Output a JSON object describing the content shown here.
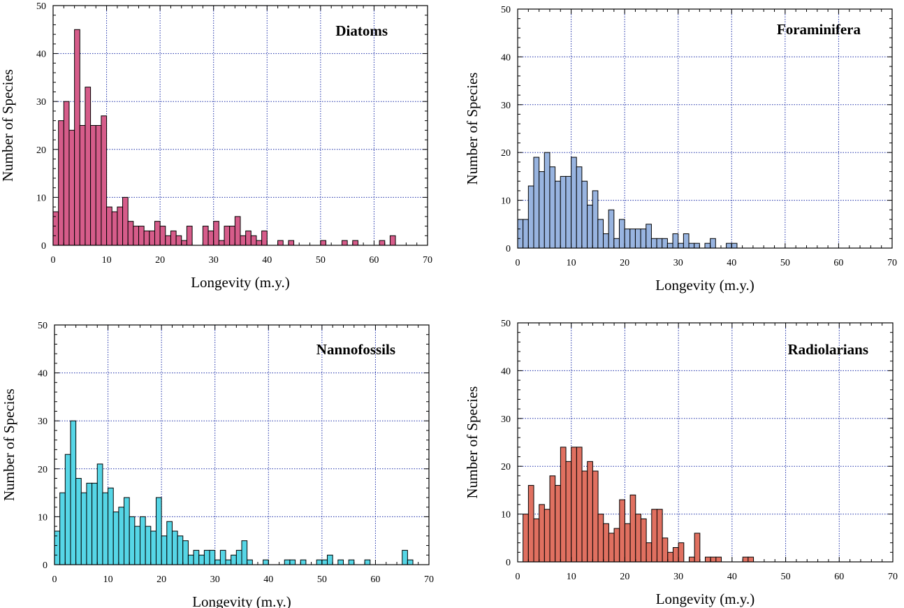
{
  "chart_data": [
    {
      "type": "bar",
      "title": "Diatoms",
      "xlabel": "Longevity (m.y.)",
      "ylabel": "Number of Species",
      "xlim": [
        0,
        70
      ],
      "ylim": [
        0,
        50
      ],
      "xticks": [
        0,
        10,
        20,
        30,
        40,
        50,
        60,
        70
      ],
      "yticks": [
        0,
        10,
        20,
        30,
        40,
        50
      ],
      "bin_width": 1,
      "grid": true,
      "color": "#d65c8a",
      "bins_start": [
        0,
        1,
        2,
        3,
        4,
        5,
        6,
        7,
        8,
        9,
        10,
        11,
        12,
        13,
        14,
        15,
        16,
        17,
        18,
        19,
        20,
        21,
        22,
        23,
        24,
        25,
        26,
        27,
        28,
        29,
        30,
        31,
        32,
        33,
        34,
        35,
        36,
        37,
        38,
        39,
        40,
        41,
        42,
        43,
        44,
        45,
        46,
        47,
        48,
        49,
        50,
        51,
        52,
        53,
        54,
        55,
        56,
        57,
        58,
        59,
        60,
        61,
        62,
        63,
        64,
        65,
        66,
        67,
        68,
        69
      ],
      "values": [
        7,
        26,
        30,
        24,
        45,
        25,
        33,
        25,
        25,
        27,
        8,
        7,
        8,
        10,
        5,
        4,
        4,
        3,
        3,
        5,
        4,
        2,
        3,
        2,
        1,
        4,
        0,
        0,
        4,
        3,
        5,
        1,
        4,
        4,
        6,
        2,
        3,
        2,
        1,
        3,
        0,
        0,
        1,
        0,
        1,
        0,
        0,
        0,
        0,
        0,
        1,
        0,
        0,
        0,
        1,
        0,
        1,
        0,
        0,
        0,
        0,
        1,
        0,
        2,
        0,
        0,
        0,
        0,
        0,
        0
      ]
    },
    {
      "type": "bar",
      "title": "Foraminifera",
      "xlabel": "Longevity (m.y.)",
      "ylabel": "Number of Species",
      "xlim": [
        0,
        70
      ],
      "ylim": [
        0,
        50
      ],
      "xticks": [
        0,
        10,
        20,
        30,
        40,
        50,
        60,
        70
      ],
      "yticks": [
        0,
        10,
        20,
        30,
        40,
        50
      ],
      "bin_width": 1,
      "grid": true,
      "color": "#98b4e0",
      "bins_start": [
        0,
        1,
        2,
        3,
        4,
        5,
        6,
        7,
        8,
        9,
        10,
        11,
        12,
        13,
        14,
        15,
        16,
        17,
        18,
        19,
        20,
        21,
        22,
        23,
        24,
        25,
        26,
        27,
        28,
        29,
        30,
        31,
        32,
        33,
        34,
        35,
        36,
        37,
        38,
        39,
        40,
        41,
        42,
        43,
        44,
        45,
        46,
        47,
        48,
        49,
        50,
        51,
        52,
        53,
        54,
        55,
        56,
        57,
        58,
        59,
        60,
        61,
        62,
        63,
        64,
        65,
        66,
        67,
        68,
        69
      ],
      "values": [
        6,
        6,
        13,
        19,
        16,
        20,
        17,
        14,
        15,
        15,
        19,
        17,
        14,
        9,
        12,
        6,
        3,
        8,
        2,
        6,
        4,
        4,
        4,
        4,
        5,
        2,
        2,
        2,
        1,
        3,
        1,
        3,
        1,
        1,
        0,
        1,
        2,
        0,
        0,
        1,
        1,
        0,
        0,
        0,
        0,
        0,
        0,
        0,
        0,
        0,
        0,
        0,
        0,
        0,
        0,
        0,
        0,
        0,
        0,
        0,
        0,
        0,
        0,
        0,
        0,
        0,
        0,
        0,
        0,
        0
      ]
    },
    {
      "type": "bar",
      "title": "Nannofossils",
      "xlabel": "Longevity (m.y.)",
      "ylabel": "Number of Species",
      "xlim": [
        0,
        70
      ],
      "ylim": [
        0,
        50
      ],
      "xticks": [
        0,
        10,
        20,
        30,
        40,
        50,
        60,
        70
      ],
      "yticks": [
        0,
        10,
        20,
        30,
        40,
        50
      ],
      "bin_width": 1,
      "grid": true,
      "color": "#56d6e6",
      "bins_start": [
        0,
        1,
        2,
        3,
        4,
        5,
        6,
        7,
        8,
        9,
        10,
        11,
        12,
        13,
        14,
        15,
        16,
        17,
        18,
        19,
        20,
        21,
        22,
        23,
        24,
        25,
        26,
        27,
        28,
        29,
        30,
        31,
        32,
        33,
        34,
        35,
        36,
        37,
        38,
        39,
        40,
        41,
        42,
        43,
        44,
        45,
        46,
        47,
        48,
        49,
        50,
        51,
        52,
        53,
        54,
        55,
        56,
        57,
        58,
        59,
        60,
        61,
        62,
        63,
        64,
        65,
        66,
        67,
        68,
        69
      ],
      "values": [
        7,
        15,
        23,
        30,
        18,
        15,
        17,
        17,
        21,
        15,
        16,
        11,
        12,
        14,
        10,
        8,
        10,
        8,
        7,
        14,
        6,
        9,
        7,
        6,
        5,
        2,
        3,
        2,
        3,
        3,
        1,
        3,
        1,
        2,
        3,
        5,
        1,
        0,
        0,
        1,
        0,
        0,
        0,
        1,
        1,
        0,
        1,
        0,
        0,
        1,
        1,
        2,
        0,
        1,
        0,
        1,
        0,
        0,
        1,
        0,
        0,
        0,
        0,
        0,
        0,
        3,
        1,
        0,
        0,
        0
      ]
    },
    {
      "type": "bar",
      "title": "Radiolarians",
      "xlabel": "Longevity (m.y.)",
      "ylabel": "Number of Species",
      "xlim": [
        0,
        70
      ],
      "ylim": [
        0,
        50
      ],
      "xticks": [
        0,
        10,
        20,
        30,
        40,
        50,
        60,
        70
      ],
      "yticks": [
        0,
        10,
        20,
        30,
        40,
        50
      ],
      "bin_width": 1,
      "grid": true,
      "color": "#e07060",
      "bins_start": [
        0,
        1,
        2,
        3,
        4,
        5,
        6,
        7,
        8,
        9,
        10,
        11,
        12,
        13,
        14,
        15,
        16,
        17,
        18,
        19,
        20,
        21,
        22,
        23,
        24,
        25,
        26,
        27,
        28,
        29,
        30,
        31,
        32,
        33,
        34,
        35,
        36,
        37,
        38,
        39,
        40,
        41,
        42,
        43,
        44,
        45,
        46,
        47,
        48,
        49,
        50,
        51,
        52,
        53,
        54,
        55,
        56,
        57,
        58,
        59,
        60,
        61,
        62,
        63,
        64,
        65,
        66,
        67,
        68,
        69
      ],
      "values": [
        0,
        10,
        16,
        9,
        12,
        11,
        18,
        16,
        24,
        21,
        24,
        24,
        19,
        21,
        19,
        10,
        8,
        6,
        7,
        13,
        8,
        14,
        10,
        9,
        4,
        11,
        11,
        5,
        2,
        3,
        4,
        0,
        1,
        6,
        0,
        1,
        1,
        1,
        0,
        0,
        0,
        0,
        1,
        1,
        0,
        0,
        0,
        0,
        0,
        0,
        0,
        0,
        0,
        0,
        0,
        0,
        0,
        0,
        0,
        0,
        0,
        0,
        0,
        0,
        0,
        0,
        0,
        0,
        0,
        0
      ]
    }
  ]
}
